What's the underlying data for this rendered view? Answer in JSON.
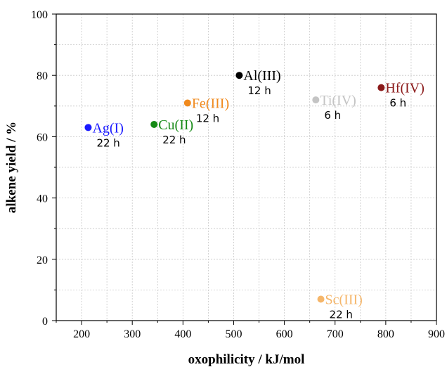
{
  "chart_data": {
    "type": "scatter",
    "title": "",
    "xlabel": "oxophilicity / kJ/mol",
    "ylabel": "alkene yield / %",
    "xlim": [
      150,
      900
    ],
    "ylim": [
      0,
      100
    ],
    "xticks": [
      200,
      300,
      400,
      500,
      600,
      700,
      800,
      900
    ],
    "yticks": [
      0,
      20,
      40,
      60,
      80,
      100
    ],
    "grid": true,
    "points": [
      {
        "label": "Ag(I)",
        "time": "22 h",
        "x": 213,
        "y": 63,
        "color": "#1a1aff"
      },
      {
        "label": "Cu(II)",
        "time": "22 h",
        "x": 343,
        "y": 64,
        "color": "#168a16"
      },
      {
        "label": "Fe(III)",
        "time": "12 h",
        "x": 409,
        "y": 71,
        "color": "#f08a1e"
      },
      {
        "label": "Al(III)",
        "time": "12 h",
        "x": 511,
        "y": 80,
        "color": "#000000"
      },
      {
        "label": "Ti(IV)",
        "time": "6 h",
        "x": 662,
        "y": 72,
        "color": "#c4c4c4"
      },
      {
        "label": "Hf(IV)",
        "time": "6 h",
        "x": 791,
        "y": 76,
        "color": "#8b1a1a"
      },
      {
        "label": "Sc(III)",
        "time": "22 h",
        "x": 672,
        "y": 7,
        "color": "#f5b66a"
      }
    ]
  }
}
